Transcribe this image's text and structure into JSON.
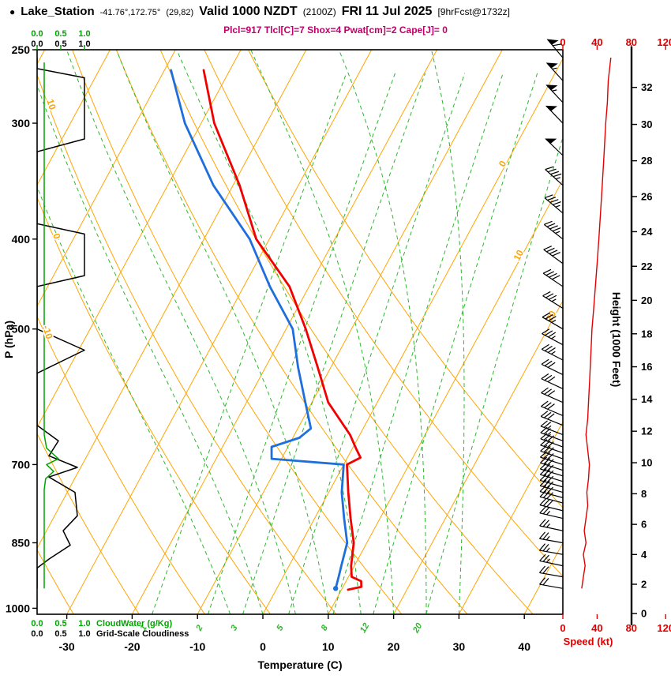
{
  "title": {
    "bullet": "●",
    "station": "Lake_Station",
    "coords": "-41.76°,172.75°",
    "grid": "(29,82)",
    "valid": "Valid 1000 NZDT",
    "valid_z": "(2100Z)",
    "date": "FRI 11 Jul 2025",
    "fcst": "[9hrFcst@1732z]"
  },
  "params_line": "Plcl=917 Tlcl[C]=7 Shox=4 Pwat[cm]=2 Cape[J]= 0",
  "chart_data": {
    "type": "skewt_sounding",
    "pressure_axis": {
      "label": "P (hPa)",
      "ticks": [
        250,
        300,
        400,
        500,
        700,
        850,
        1000
      ],
      "range": [
        250,
        1015
      ]
    },
    "temp_axis": {
      "label": "Temperature (C)",
      "ticks": [
        -30,
        -20,
        -10,
        0,
        10,
        20,
        30,
        40
      ]
    },
    "height_axis": {
      "label": "Height (1000 Feet)",
      "ticks": [
        0,
        2,
        4,
        6,
        8,
        10,
        12,
        14,
        16,
        18,
        20,
        22,
        24,
        26,
        28,
        30,
        32
      ]
    },
    "speed_axis": {
      "label": "Speed (kt)",
      "ticks": [
        0,
        40,
        80,
        120
      ]
    },
    "cloud_axis": {
      "ticks": [
        "0.0",
        "0.5",
        "1.0"
      ],
      "cloudwater_label": "CloudWater (g/Kg)",
      "cloudiness_label": "Grid-Scale Cloudiness"
    },
    "isotherm_step": 10,
    "dry_adiabat_step": 10,
    "isotherm_labels": [
      {
        "t": 0,
        "p": 333
      },
      {
        "t": 10,
        "p": 418
      },
      {
        "t": 20,
        "p": 486
      }
    ],
    "dry_adiabat_labels": [
      {
        "theta": -10,
        "p": 505
      },
      {
        "theta": 0,
        "p": 398
      },
      {
        "theta": 10,
        "p": 287
      }
    ],
    "mixing_ratio_lines": [
      1,
      2,
      3,
      5,
      8,
      12,
      20
    ],
    "moist_adiabat_starts": [
      -5,
      0,
      5,
      10,
      15,
      20,
      25,
      30
    ],
    "temperature": [
      [
        955,
        11
      ],
      [
        948,
        12.8
      ],
      [
        935,
        12.3
      ],
      [
        925,
        10.5
      ],
      [
        900,
        9.5
      ],
      [
        850,
        8
      ],
      [
        800,
        5.5
      ],
      [
        750,
        3
      ],
      [
        700,
        0.5
      ],
      [
        688,
        2
      ],
      [
        672,
        0.5
      ],
      [
        650,
        -1.5
      ],
      [
        600,
        -7.5
      ],
      [
        550,
        -12
      ],
      [
        500,
        -17
      ],
      [
        450,
        -23
      ],
      [
        400,
        -32
      ],
      [
        350,
        -39
      ],
      [
        300,
        -48
      ],
      [
        263,
        -54
      ]
    ],
    "dewpoint": [
      [
        952,
        9
      ],
      [
        925,
        8.5
      ],
      [
        900,
        8
      ],
      [
        850,
        7
      ],
      [
        800,
        4.5
      ],
      [
        750,
        2
      ],
      [
        700,
        0
      ],
      [
        690,
        -11.5
      ],
      [
        670,
        -12.5
      ],
      [
        655,
        -9
      ],
      [
        640,
        -8
      ],
      [
        600,
        -11
      ],
      [
        550,
        -15
      ],
      [
        500,
        -19
      ],
      [
        450,
        -26
      ],
      [
        400,
        -33
      ],
      [
        350,
        -43
      ],
      [
        300,
        -52.5
      ],
      [
        263,
        -59
      ]
    ],
    "speed_profile": [
      [
        952,
        22
      ],
      [
        925,
        24
      ],
      [
        900,
        26
      ],
      [
        875,
        24
      ],
      [
        850,
        27
      ],
      [
        825,
        25
      ],
      [
        800,
        27
      ],
      [
        775,
        29
      ],
      [
        750,
        28
      ],
      [
        725,
        30
      ],
      [
        700,
        31
      ],
      [
        675,
        29
      ],
      [
        650,
        27
      ],
      [
        625,
        29
      ],
      [
        600,
        30
      ],
      [
        575,
        31
      ],
      [
        550,
        32
      ],
      [
        525,
        33
      ],
      [
        500,
        34
      ],
      [
        475,
        36
      ],
      [
        450,
        38
      ],
      [
        425,
        40
      ],
      [
        400,
        42
      ],
      [
        375,
        44
      ],
      [
        350,
        46
      ],
      [
        325,
        48
      ],
      [
        300,
        50
      ],
      [
        285,
        52
      ],
      [
        270,
        53
      ],
      [
        255,
        56
      ]
    ],
    "wind_barbs": [
      [
        952,
        280,
        20
      ],
      [
        925,
        280,
        22
      ],
      [
        900,
        282,
        25
      ],
      [
        875,
        280,
        25
      ],
      [
        850,
        280,
        27
      ],
      [
        825,
        282,
        25
      ],
      [
        800,
        283,
        27
      ],
      [
        785,
        284,
        28
      ],
      [
        770,
        285,
        29
      ],
      [
        760,
        285,
        30
      ],
      [
        750,
        286,
        28
      ],
      [
        740,
        286,
        30
      ],
      [
        730,
        287,
        30
      ],
      [
        720,
        287,
        31
      ],
      [
        710,
        288,
        31
      ],
      [
        700,
        288,
        32
      ],
      [
        690,
        289,
        30
      ],
      [
        680,
        289,
        29
      ],
      [
        670,
        290,
        28
      ],
      [
        660,
        290,
        27
      ],
      [
        650,
        291,
        27
      ],
      [
        635,
        292,
        28
      ],
      [
        620,
        293,
        29
      ],
      [
        600,
        294,
        30
      ],
      [
        580,
        295,
        31
      ],
      [
        560,
        296,
        32
      ],
      [
        540,
        297,
        33
      ],
      [
        520,
        298,
        33
      ],
      [
        500,
        300,
        35
      ],
      [
        475,
        302,
        37
      ],
      [
        450,
        304,
        39
      ],
      [
        425,
        306,
        41
      ],
      [
        400,
        308,
        43
      ],
      [
        375,
        310,
        45
      ],
      [
        350,
        312,
        47
      ],
      [
        325,
        314,
        49
      ],
      [
        300,
        316,
        51
      ],
      [
        285,
        317,
        53
      ],
      [
        270,
        318,
        55
      ],
      [
        255,
        320,
        58
      ]
    ],
    "cloudiness": [
      [
        255,
        0
      ],
      [
        262,
        0
      ],
      [
        268,
        1.0
      ],
      [
        312,
        1.0
      ],
      [
        322,
        0
      ],
      [
        385,
        0
      ],
      [
        395,
        1.0
      ],
      [
        438,
        1.0
      ],
      [
        450,
        0
      ],
      [
        500,
        0
      ],
      [
        527,
        1.0
      ],
      [
        558,
        0
      ],
      [
        635,
        0
      ],
      [
        660,
        0.45
      ],
      [
        685,
        0.25
      ],
      [
        705,
        0.85
      ],
      [
        722,
        0.25
      ],
      [
        750,
        0.8
      ],
      [
        795,
        0.85
      ],
      [
        825,
        0.55
      ],
      [
        855,
        0.7
      ],
      [
        885,
        0.25
      ],
      [
        905,
        0
      ],
      [
        952,
        0
      ]
    ],
    "cloudwater": [
      [
        258,
        0.15
      ],
      [
        650,
        0.15
      ],
      [
        672,
        0.2
      ],
      [
        690,
        0.45
      ],
      [
        700,
        0.2
      ],
      [
        712,
        0.35
      ],
      [
        725,
        0.18
      ],
      [
        745,
        0.15
      ],
      [
        952,
        0.15
      ]
    ],
    "colors": {
      "temperature": "#f00000",
      "dewpoint": "#1e6fdc",
      "grid": "#ffa500",
      "moist": "#2db82d",
      "barbs": "#000000",
      "params": "#c0006a",
      "speed": "#e10000",
      "cloudwater": "#00a400",
      "cloudiness": "#000000"
    }
  }
}
